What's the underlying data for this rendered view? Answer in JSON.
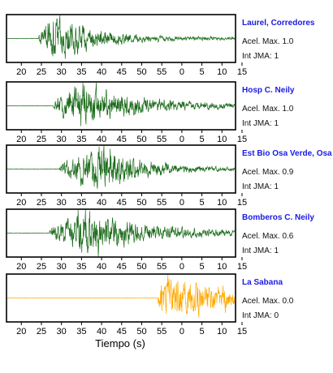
{
  "chart_data": {
    "type": "line",
    "xlabel": "Tiempo (s)",
    "x_tick_labels": [
      "20",
      "25",
      "30",
      "35",
      "40",
      "45",
      "50",
      "55",
      "0",
      "5",
      "10",
      "15"
    ],
    "stations": [
      {
        "name": "Laurel, Corredores",
        "pga_text": "Acel. Max. 1.0",
        "jma_text": "Int JMA: 1",
        "pga": 1.0,
        "jma": 1,
        "color": "#1a6b1a",
        "onset_tick": 24.3,
        "peak_tick": 29,
        "coda_decay": 10,
        "envelope_end": 0.06
      },
      {
        "name": "Hosp C. Neily",
        "pga_text": "Acel. Max. 1.0",
        "jma_text": "Int JMA: 1",
        "pga": 1.0,
        "jma": 1,
        "color": "#1a6b1a",
        "onset_tick": 28.0,
        "peak_tick": 35,
        "coda_decay": 13,
        "envelope_end": 0.08
      },
      {
        "name": "Est Bio Osa Verde, Osa",
        "pga_text": "Acel. Max. 0.9",
        "jma_text": "Int JMA: 1",
        "pga": 0.9,
        "jma": 1,
        "color": "#1a6b1a",
        "onset_tick": 29.5,
        "peak_tick": 40,
        "coda_decay": 11,
        "envelope_end": 0.04
      },
      {
        "name": "Bomberos C. Neily",
        "pga_text": "Acel. Max. 0.6",
        "jma_text": "Int JMA: 1",
        "pga": 0.6,
        "jma": 1,
        "color": "#1a6b1a",
        "onset_tick": 27.0,
        "peak_tick": 36,
        "coda_decay": 14,
        "envelope_end": 0.07
      },
      {
        "name": "La Sabana",
        "pga_text": "Acel. Max. 0.0",
        "jma_text": "Int JMA: 0",
        "pga": 0.0,
        "jma": 0,
        "color": "#ffaa00",
        "onset_tick": 54.0,
        "peak_tick": 55.5,
        "coda_decay": 16,
        "envelope_end": 0.2
      }
    ]
  }
}
